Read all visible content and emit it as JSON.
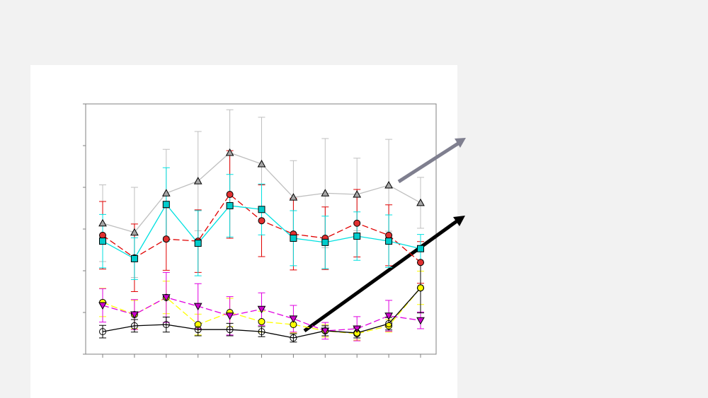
{
  "chart_data": {
    "type": "line",
    "categories": [
      null,
      null,
      null,
      null,
      null,
      null,
      null,
      null,
      null,
      null,
      null
    ],
    "ylim": [
      0,
      6
    ],
    "yticks": [
      0,
      1,
      2,
      3,
      4,
      5,
      6
    ],
    "series": [
      {
        "color": "#bfbfbf",
        "marker": "triangle-up",
        "marker_fill": "#a6a6a6",
        "dash": "solid",
        "values": [
          3.14,
          2.92,
          3.86,
          4.15,
          4.83,
          4.56,
          3.76,
          3.86,
          3.83,
          4.05,
          3.63
        ],
        "errors": [
          0.92,
          1.08,
          1.05,
          1.19,
          1.03,
          1.12,
          0.88,
          1.31,
          0.87,
          1.1,
          0.61
        ]
      },
      {
        "color": "#e00000",
        "marker": "circle",
        "marker_fill": "#e03030",
        "dash": "dashed",
        "values": [
          2.85,
          2.31,
          2.76,
          2.71,
          3.83,
          3.2,
          2.88,
          2.78,
          3.14,
          2.85,
          2.2
        ],
        "errors": [
          0.81,
          0.81,
          0.75,
          0.75,
          1.05,
          0.86,
          0.86,
          0.75,
          0.81,
          0.73,
          0.5
        ]
      },
      {
        "color": "#00e0e0",
        "marker": "square",
        "marker_fill": "#00cccc",
        "dash": "solid",
        "values": [
          2.71,
          2.29,
          3.59,
          2.66,
          3.56,
          3.47,
          2.78,
          2.68,
          2.83,
          2.71,
          2.53
        ],
        "errors": [
          0.64,
          0.5,
          0.88,
          0.78,
          0.75,
          0.61,
          0.66,
          0.63,
          0.58,
          0.63,
          0.34
        ]
      },
      {
        "color": "#ffff00",
        "marker": "circle",
        "marker_fill": "#ffff00",
        "dash": "dashed",
        "values": [
          1.24,
          0.95,
          1.36,
          0.71,
          1.0,
          0.78,
          0.71,
          0.56,
          0.49,
          0.68,
          1.59
        ],
        "errors": [
          0.34,
          0.34,
          0.39,
          0.25,
          0.34,
          0.25,
          0.2,
          0.15,
          0.15,
          0.15,
          0.4
        ]
      },
      {
        "color": "#e000e0",
        "marker": "triangle-down",
        "marker_fill": "#cc00cc",
        "dash": "dashed",
        "values": [
          1.17,
          0.95,
          1.36,
          1.15,
          0.92,
          1.08,
          0.85,
          0.56,
          0.61,
          0.92,
          0.81
        ],
        "errors": [
          0.4,
          0.36,
          0.6,
          0.54,
          0.46,
          0.39,
          0.32,
          0.2,
          0.29,
          0.37,
          0.2
        ]
      },
      {
        "color": "#000000",
        "marker": "circle",
        "marker_fill": "none",
        "dash": "solid",
        "values": [
          0.54,
          0.68,
          0.71,
          0.59,
          0.59,
          0.54,
          0.39,
          0.56,
          0.51,
          0.73,
          1.59
        ],
        "errors": [
          0.15,
          0.15,
          0.18,
          0.15,
          0.15,
          0.12,
          0.1,
          0.12,
          0.12,
          0.15,
          0.6
        ]
      }
    ]
  }
}
